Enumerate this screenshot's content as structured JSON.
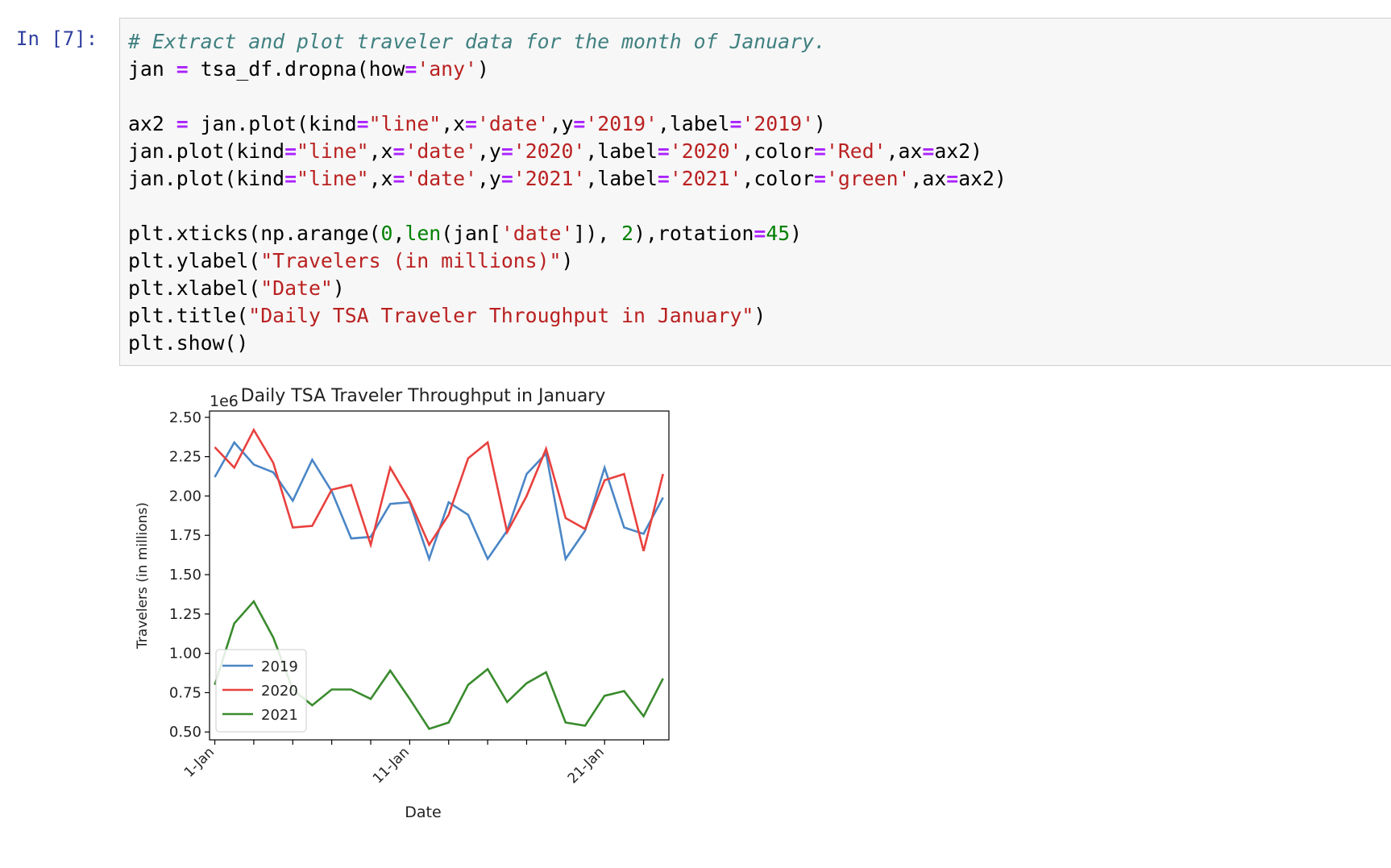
{
  "notebook": {
    "prompt": "In [7]:",
    "code_lines": [
      "# Extract and plot traveler data for the month of January.",
      "jan = tsa_df.dropna(how='any')",
      "",
      "ax2 = jan.plot(kind=\"line\",x='date',y='2019',label='2019')",
      "jan.plot(kind=\"line\",x='date',y='2020',label='2020',color='Red',ax=ax2)",
      "jan.plot(kind=\"line\",x='date',y='2021',label='2021',color='green',ax=ax2)",
      "",
      "plt.xticks(np.arange(0,len(jan['date']), 2),rotation=45)",
      "plt.ylabel(\"Travelers (in millions)\")",
      "plt.xlabel(\"Date\")",
      "plt.title(\"Daily TSA Traveler Throughput in January\")",
      "plt.show()"
    ]
  },
  "chart_data": {
    "type": "line",
    "title": "Daily TSA Traveler Throughput in January",
    "xlabel": "Date",
    "ylabel": "Travelers (in millions)",
    "offset_label": "1e6",
    "ylim": [
      0.45,
      2.54
    ],
    "yticks": [
      "0.50",
      "0.75",
      "1.00",
      "1.25",
      "1.50",
      "1.75",
      "2.00",
      "2.25",
      "2.50"
    ],
    "x": [
      1,
      2,
      3,
      4,
      5,
      6,
      7,
      8,
      9,
      10,
      11,
      12,
      13,
      14,
      15,
      16,
      17,
      18,
      19,
      20,
      21,
      22,
      23,
      24
    ],
    "xtick_labels": [
      {
        "x": 1,
        "label": "1-Jan"
      },
      {
        "x": 11,
        "label": "11-Jan"
      },
      {
        "x": 21,
        "label": "21-Jan"
      }
    ],
    "legend_position": "lower-left",
    "series": [
      {
        "name": "2019",
        "color": "#4a86c6",
        "values": [
          2.12,
          2.34,
          2.2,
          2.15,
          1.97,
          2.23,
          2.03,
          1.73,
          1.74,
          1.95,
          1.96,
          1.6,
          1.96,
          1.88,
          1.6,
          1.78,
          2.14,
          2.27,
          1.6,
          1.78,
          2.18,
          1.8,
          1.76,
          1.99
        ]
      },
      {
        "name": "2020",
        "color": "#e8413e",
        "values": [
          2.31,
          2.18,
          2.42,
          2.21,
          1.8,
          1.81,
          2.04,
          2.07,
          1.69,
          2.18,
          1.97,
          1.69,
          1.88,
          2.24,
          2.34,
          1.77,
          2.0,
          2.3,
          1.86,
          1.79,
          2.1,
          2.14,
          1.65,
          2.14
        ]
      },
      {
        "name": "2021",
        "color": "#3a8b2e",
        "values": [
          0.8,
          1.19,
          1.33,
          1.1,
          0.77,
          0.67,
          0.77,
          0.77,
          0.71,
          0.89,
          0.71,
          0.52,
          0.56,
          0.8,
          0.9,
          0.69,
          0.81,
          0.88,
          0.56,
          0.54,
          0.73,
          0.76,
          0.6,
          0.84
        ]
      }
    ]
  }
}
